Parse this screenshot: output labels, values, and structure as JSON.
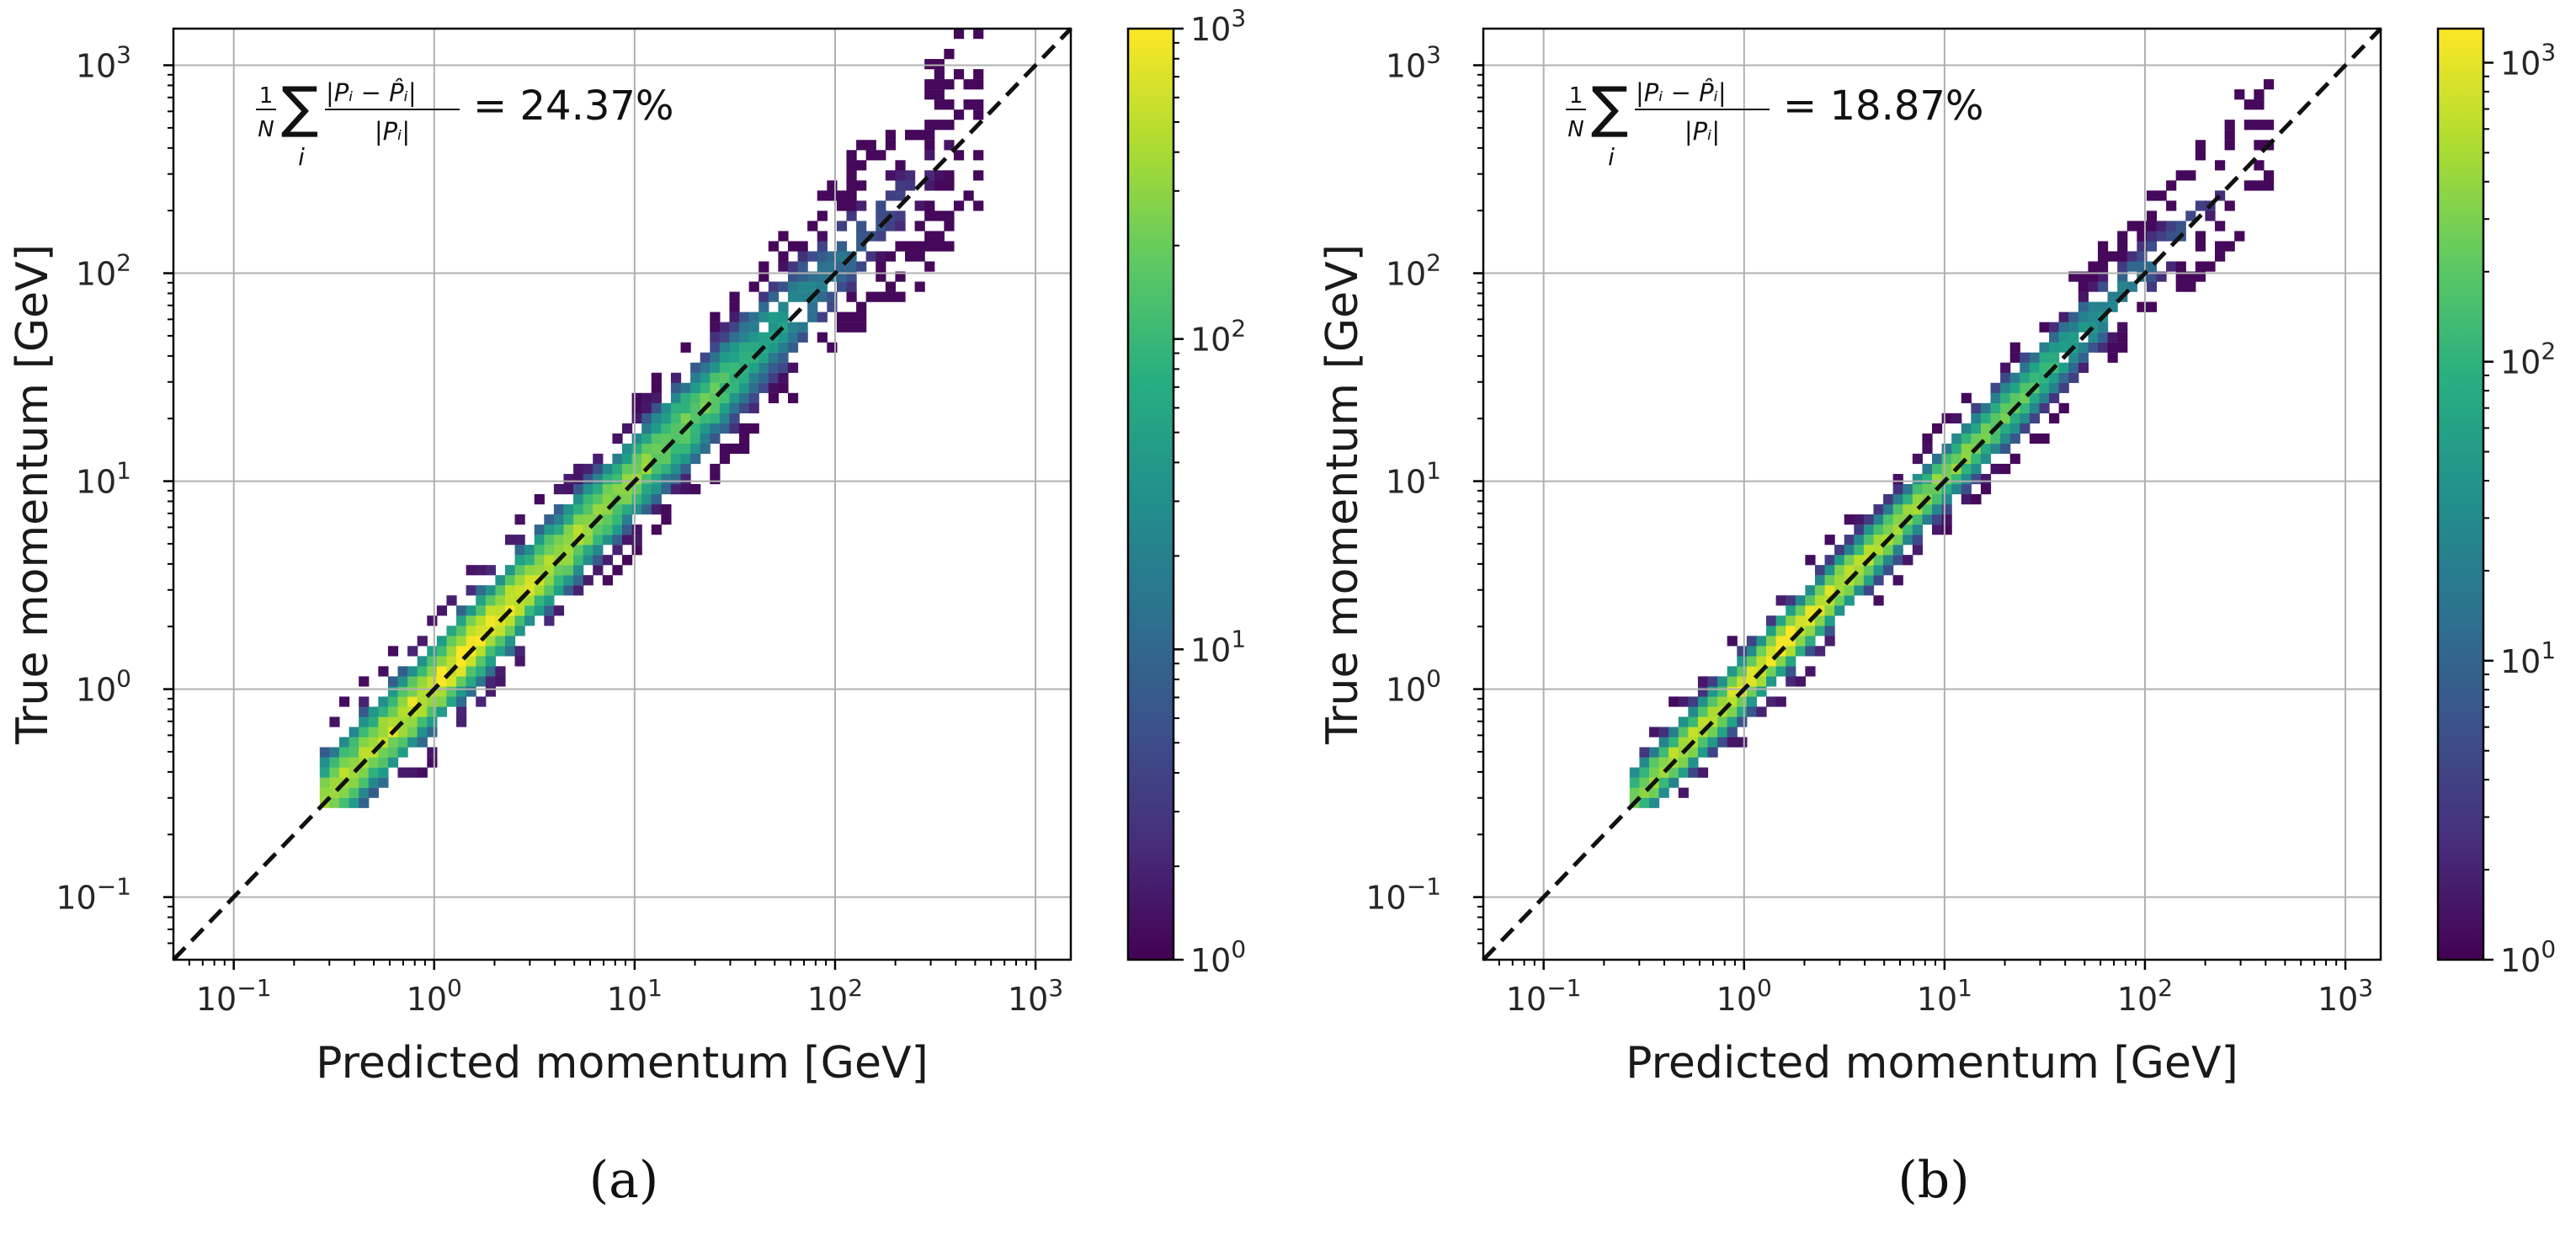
{
  "chart_data": [
    {
      "type": "heatmap",
      "subtype": "2d-histogram",
      "panel_label": "(a)",
      "metric": {
        "sum_label": "i",
        "equals": "= ",
        "value": "24.37%"
      },
      "xlabel": "Predicted momentum [GeV]",
      "ylabel": "True momentum [GeV]",
      "xscale": "log",
      "yscale": "log",
      "xlim": [
        0.05,
        1500
      ],
      "ylim": [
        0.05,
        1500
      ],
      "xticks": [
        {
          "base": "10",
          "exp": "−1"
        },
        {
          "base": "10",
          "exp": "0"
        },
        {
          "base": "10",
          "exp": "1"
        },
        {
          "base": "10",
          "exp": "2"
        },
        {
          "base": "10",
          "exp": "3"
        }
      ],
      "yticks": [
        {
          "base": "10",
          "exp": "−1"
        },
        {
          "base": "10",
          "exp": "0"
        },
        {
          "base": "10",
          "exp": "1"
        },
        {
          "base": "10",
          "exp": "2"
        },
        {
          "base": "10",
          "exp": "3"
        }
      ],
      "grid": true,
      "reference_line": "y = x (dashed)",
      "colorbar": {
        "scale": "log",
        "range": [
          1,
          1000
        ],
        "colormap": "viridis",
        "ticks": [
          {
            "base": "10",
            "exp": "0"
          },
          {
            "base": "10",
            "exp": "1"
          },
          {
            "base": "10",
            "exp": "2"
          },
          {
            "base": "10",
            "exp": "3"
          }
        ]
      },
      "distribution": {
        "x_range": [
          0.27,
          400
        ],
        "core_log_halfwidth": 0.1,
        "spread_log_halfwidth": 0.38,
        "peak_x": 1.5
      }
    },
    {
      "type": "heatmap",
      "subtype": "2d-histogram",
      "panel_label": "(b)",
      "metric": {
        "sum_label": "i",
        "equals": "= ",
        "value": "18.87%"
      },
      "xlabel": "Predicted momentum [GeV]",
      "ylabel": "True momentum [GeV]",
      "xscale": "log",
      "yscale": "log",
      "xlim": [
        0.05,
        1500
      ],
      "ylim": [
        0.05,
        1500
      ],
      "xticks": [
        {
          "base": "10",
          "exp": "−1"
        },
        {
          "base": "10",
          "exp": "0"
        },
        {
          "base": "10",
          "exp": "1"
        },
        {
          "base": "10",
          "exp": "2"
        },
        {
          "base": "10",
          "exp": "3"
        }
      ],
      "yticks": [
        {
          "base": "10",
          "exp": "−1"
        },
        {
          "base": "10",
          "exp": "0"
        },
        {
          "base": "10",
          "exp": "1"
        },
        {
          "base": "10",
          "exp": "2"
        },
        {
          "base": "10",
          "exp": "3"
        }
      ],
      "grid": true,
      "reference_line": "y = x (dashed)",
      "colorbar": {
        "scale": "log",
        "range": [
          1,
          1300
        ],
        "colormap": "viridis",
        "ticks": [
          {
            "base": "10",
            "exp": "0"
          },
          {
            "base": "10",
            "exp": "1"
          },
          {
            "base": "10",
            "exp": "2"
          },
          {
            "base": "10",
            "exp": "3"
          }
        ]
      },
      "distribution": {
        "x_range": [
          0.27,
          300
        ],
        "core_log_halfwidth": 0.07,
        "spread_log_halfwidth": 0.28,
        "peak_x": 1.5
      }
    }
  ]
}
